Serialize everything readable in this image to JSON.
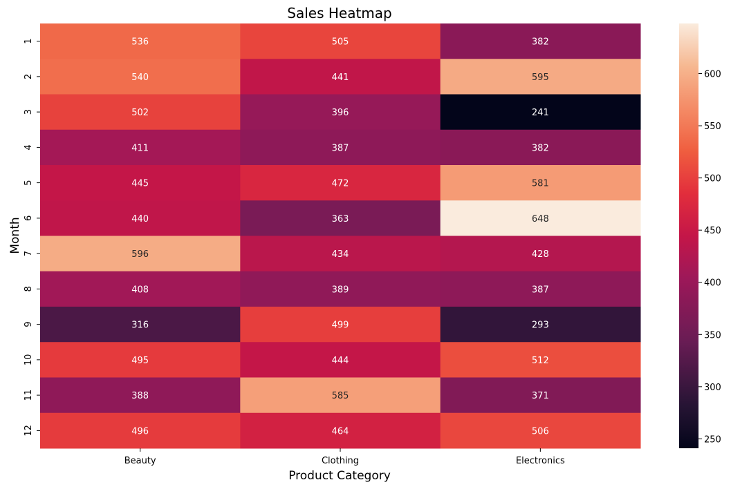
{
  "chart_data": {
    "type": "heatmap",
    "title": "Sales Heatmap",
    "xlabel": "Product Category",
    "ylabel": "Month",
    "categories": [
      "Beauty",
      "Clothing",
      "Electronics"
    ],
    "rows": [
      "1",
      "2",
      "3",
      "4",
      "5",
      "6",
      "7",
      "8",
      "9",
      "10",
      "11",
      "12"
    ],
    "values": [
      [
        536,
        505,
        382
      ],
      [
        540,
        441,
        595
      ],
      [
        502,
        396,
        241
      ],
      [
        411,
        387,
        382
      ],
      [
        445,
        472,
        581
      ],
      [
        440,
        363,
        648
      ],
      [
        596,
        434,
        428
      ],
      [
        408,
        389,
        387
      ],
      [
        316,
        499,
        293
      ],
      [
        495,
        444,
        512
      ],
      [
        388,
        585,
        371
      ],
      [
        496,
        464,
        506
      ]
    ],
    "colorbar": {
      "range": [
        241,
        648
      ],
      "ticks": [
        250,
        300,
        350,
        400,
        450,
        500,
        550,
        600
      ]
    },
    "colormap": "rocket",
    "grid": false
  }
}
